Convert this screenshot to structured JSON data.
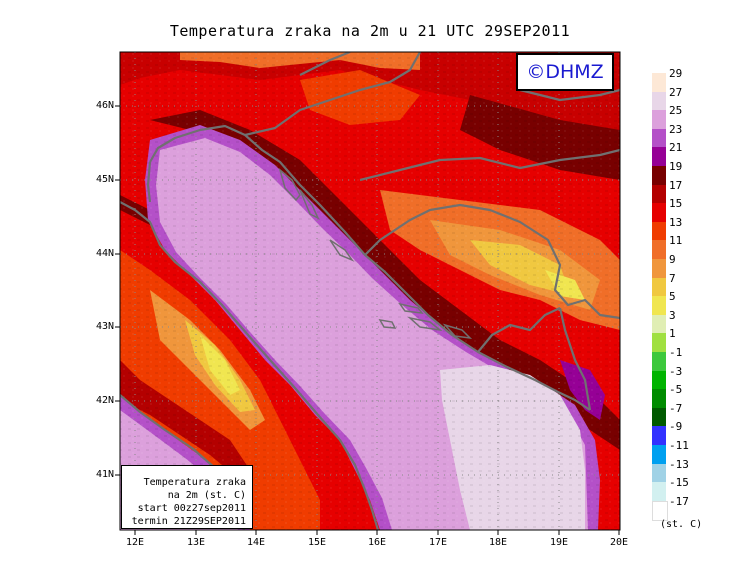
{
  "title": "Temperatura zraka na 2m u 21 UTC 29SEP2011",
  "logo": "©DHMZ",
  "info": {
    "line1": "Temperatura zraka",
    "line2": "na 2m (st. C)",
    "line3": "start 00z27sep2011",
    "line4": "termin 21Z29SEP2011"
  },
  "axes": {
    "lat_labels": [
      "46N",
      "45N",
      "44N",
      "43N",
      "42N",
      "41N"
    ],
    "lon_labels": [
      "12E",
      "13E",
      "14E",
      "15E",
      "16E",
      "17E",
      "18E",
      "19E",
      "20E"
    ]
  },
  "legend": {
    "levels": [
      "29",
      "27",
      "25",
      "23",
      "21",
      "19",
      "17",
      "15",
      "13",
      "11",
      "9",
      "7",
      "5",
      "3",
      "1",
      "-1",
      "-3",
      "-5",
      "-7",
      "-9",
      "-11",
      "-13",
      "-15",
      "-17"
    ],
    "colors": [
      "#fde8d6",
      "#e8d6e8",
      "#dca0dc",
      "#b450c8",
      "#960096",
      "#780000",
      "#b40000",
      "#e60000",
      "#f03c00",
      "#f06e28",
      "#f0963c",
      "#f0c840",
      "#f0e650",
      "#e0eeb4",
      "#a0e040",
      "#3cc83c",
      "#00b400",
      "#008c00",
      "#005a00",
      "#3232ff",
      "#00a0f0",
      "#a0d2e6",
      "#d2f0f0",
      "#ffffff"
    ],
    "unit": "(st. C)"
  }
}
